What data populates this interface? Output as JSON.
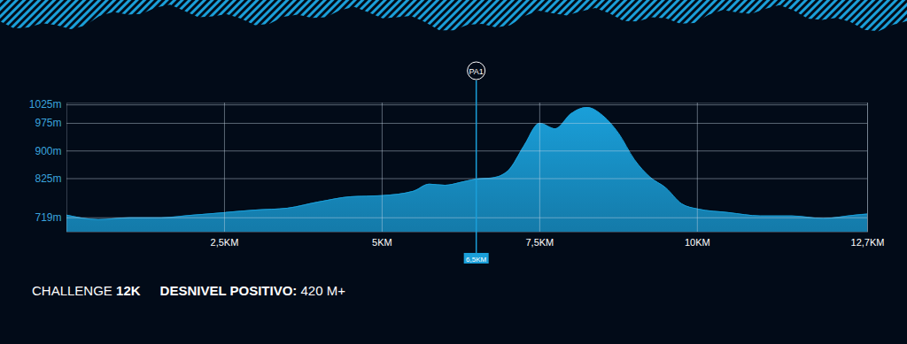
{
  "chart_data": {
    "type": "area",
    "title": "CHALLENGE 12K",
    "subtitle": "DESNIVEL POSITIVO: 420 M+",
    "x": [
      0,
      0.5,
      1,
      1.5,
      2,
      2.5,
      3,
      3.5,
      4,
      4.5,
      5,
      5.5,
      5.75,
      6,
      6.25,
      6.5,
      6.75,
      7,
      7.25,
      7.5,
      7.75,
      8,
      8.25,
      8.5,
      8.75,
      9,
      9.25,
      9.5,
      9.75,
      10,
      10.5,
      11,
      11.5,
      12,
      12.5,
      12.7
    ],
    "values": [
      726,
      714,
      719,
      719,
      726,
      733,
      740,
      745,
      762,
      776,
      779,
      791,
      810,
      807,
      815,
      824,
      827,
      846,
      913,
      975,
      960,
      1001,
      1018,
      996,
      948,
      877,
      829,
      800,
      757,
      743,
      733,
      724,
      724,
      717,
      726,
      729
    ],
    "color": "#1a9fd9",
    "xlim": [
      0,
      12.7
    ],
    "ylim": [
      680,
      1030
    ],
    "xticks": [
      {
        "value": 2.5,
        "label": "2,5KM"
      },
      {
        "value": 5,
        "label": "5KM"
      },
      {
        "value": 7.5,
        "label": "7,5KM"
      },
      {
        "value": 10,
        "label": "10KM"
      },
      {
        "value": 12.7,
        "label": "12,7KM"
      }
    ],
    "yticks": [
      {
        "value": 719,
        "label": "719m"
      },
      {
        "value": 825,
        "label": "825m"
      },
      {
        "value": 900,
        "label": "900m"
      },
      {
        "value": 975,
        "label": "975m"
      },
      {
        "value": 1025,
        "label": "1025m"
      }
    ],
    "grid": true,
    "annotations": [
      {
        "x": 6.5,
        "text": "PA1",
        "label": "6,5KM"
      }
    ]
  }
}
